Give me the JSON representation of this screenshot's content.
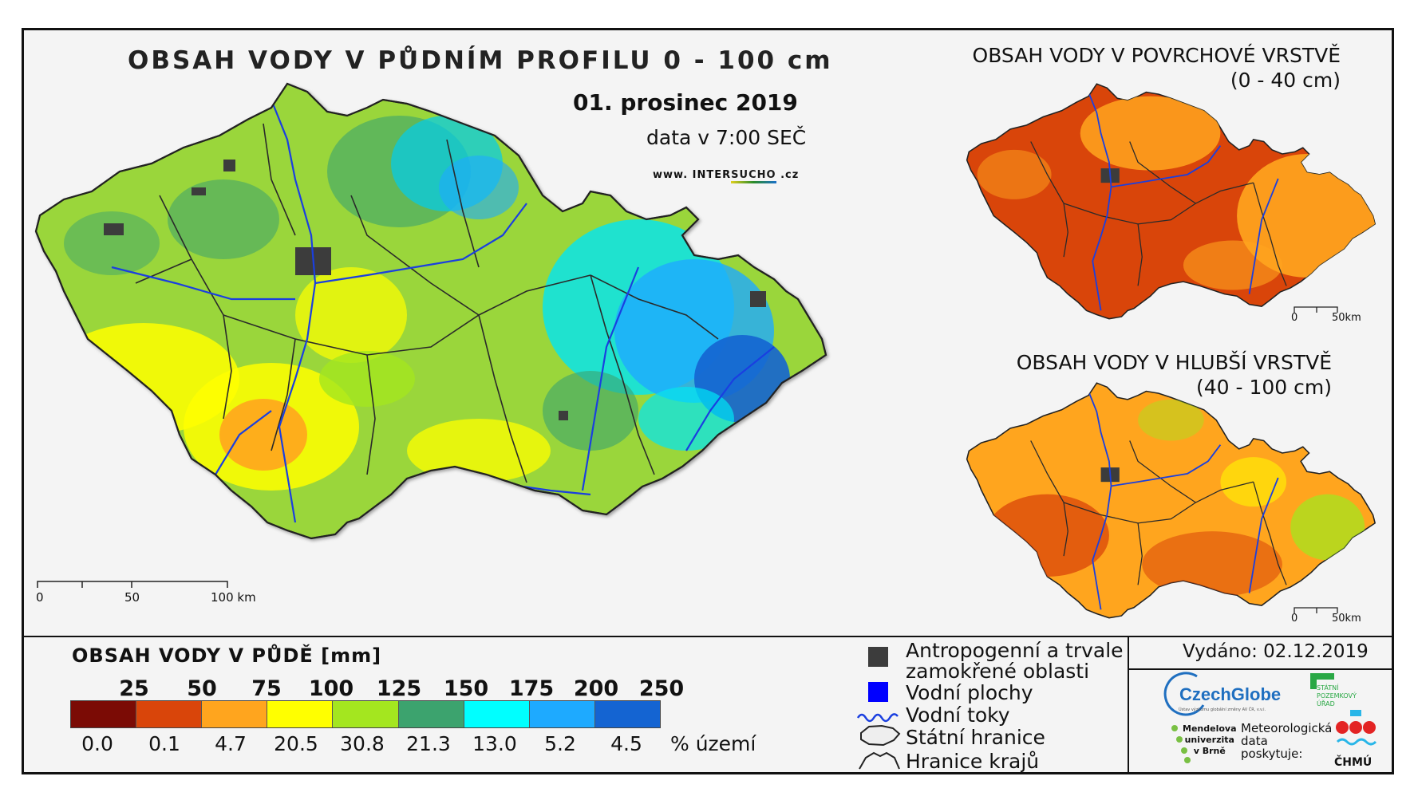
{
  "main_map": {
    "title": "OBSAH VODY V PŮDNÍM PROFILU 0 - 100 cm",
    "date": "01. prosinec 2019",
    "time_note": "data v 7:00 SEČ",
    "website_prefix": "www. ",
    "website_brand_a": "INTER",
    "website_brand_b": "SUCHO",
    "website_suffix": " .cz",
    "scale": {
      "zero": "0",
      "mid": "50",
      "end": "100 km"
    }
  },
  "surface_map": {
    "title": "OBSAH VODY V POVRCHOVÉ VRSTVĚ",
    "range": "(0 - 40 cm)",
    "scale": {
      "zero": "0",
      "end": "50km"
    }
  },
  "deep_map": {
    "title": "OBSAH VODY V HLUBŠÍ VRSTVĚ",
    "range": "(40 - 100 cm)",
    "scale": {
      "zero": "0",
      "end": "50km"
    }
  },
  "legend": {
    "title": "OBSAH VODY V PŮDĚ [mm]",
    "thresholds": [
      "25",
      "50",
      "75",
      "100",
      "125",
      "150",
      "175",
      "200",
      "250"
    ],
    "percentages": [
      "0.0",
      "0.1",
      "4.7",
      "20.5",
      "30.8",
      "21.3",
      "13.0",
      "5.2",
      "4.5"
    ],
    "percent_unit": "% území",
    "colors": [
      "#7b0b05",
      "#d9450a",
      "#ffa51e",
      "#ffff00",
      "#a4e61f",
      "#3ca36e",
      "#00ffff",
      "#1eaaff",
      "#1464d2"
    ]
  },
  "keys": {
    "anthropogenic": "Antropogenní a trvale",
    "anthropogenic_2": "zamokřené oblasti",
    "water_bodies": "Vodní plochy",
    "rivers": "Vodní toky",
    "state_border": "Státní hranice",
    "region_border": "Hranice krajů",
    "colors": {
      "anthropogenic": "#3c3c3c",
      "water": "#0000ff",
      "river": "#1a3fe0"
    }
  },
  "footer": {
    "issued": "Vydáno: 02.12.2019",
    "czechglobe": "CzechGlobe",
    "czechglobe_sub": "Ústav výzkumu globální změny AV ČR, v.v.i.",
    "spu_1": "STÁTNÍ",
    "spu_2": "POZEMKOVÝ",
    "spu_3": "ÚŘAD",
    "mendel_1": "Mendelova",
    "mendel_2": "univerzita",
    "mendel_3": "v Brně",
    "met_1": "Meteorologická",
    "met_2": "data",
    "met_3": "poskytuje:",
    "chmu": "ČHMÚ"
  }
}
